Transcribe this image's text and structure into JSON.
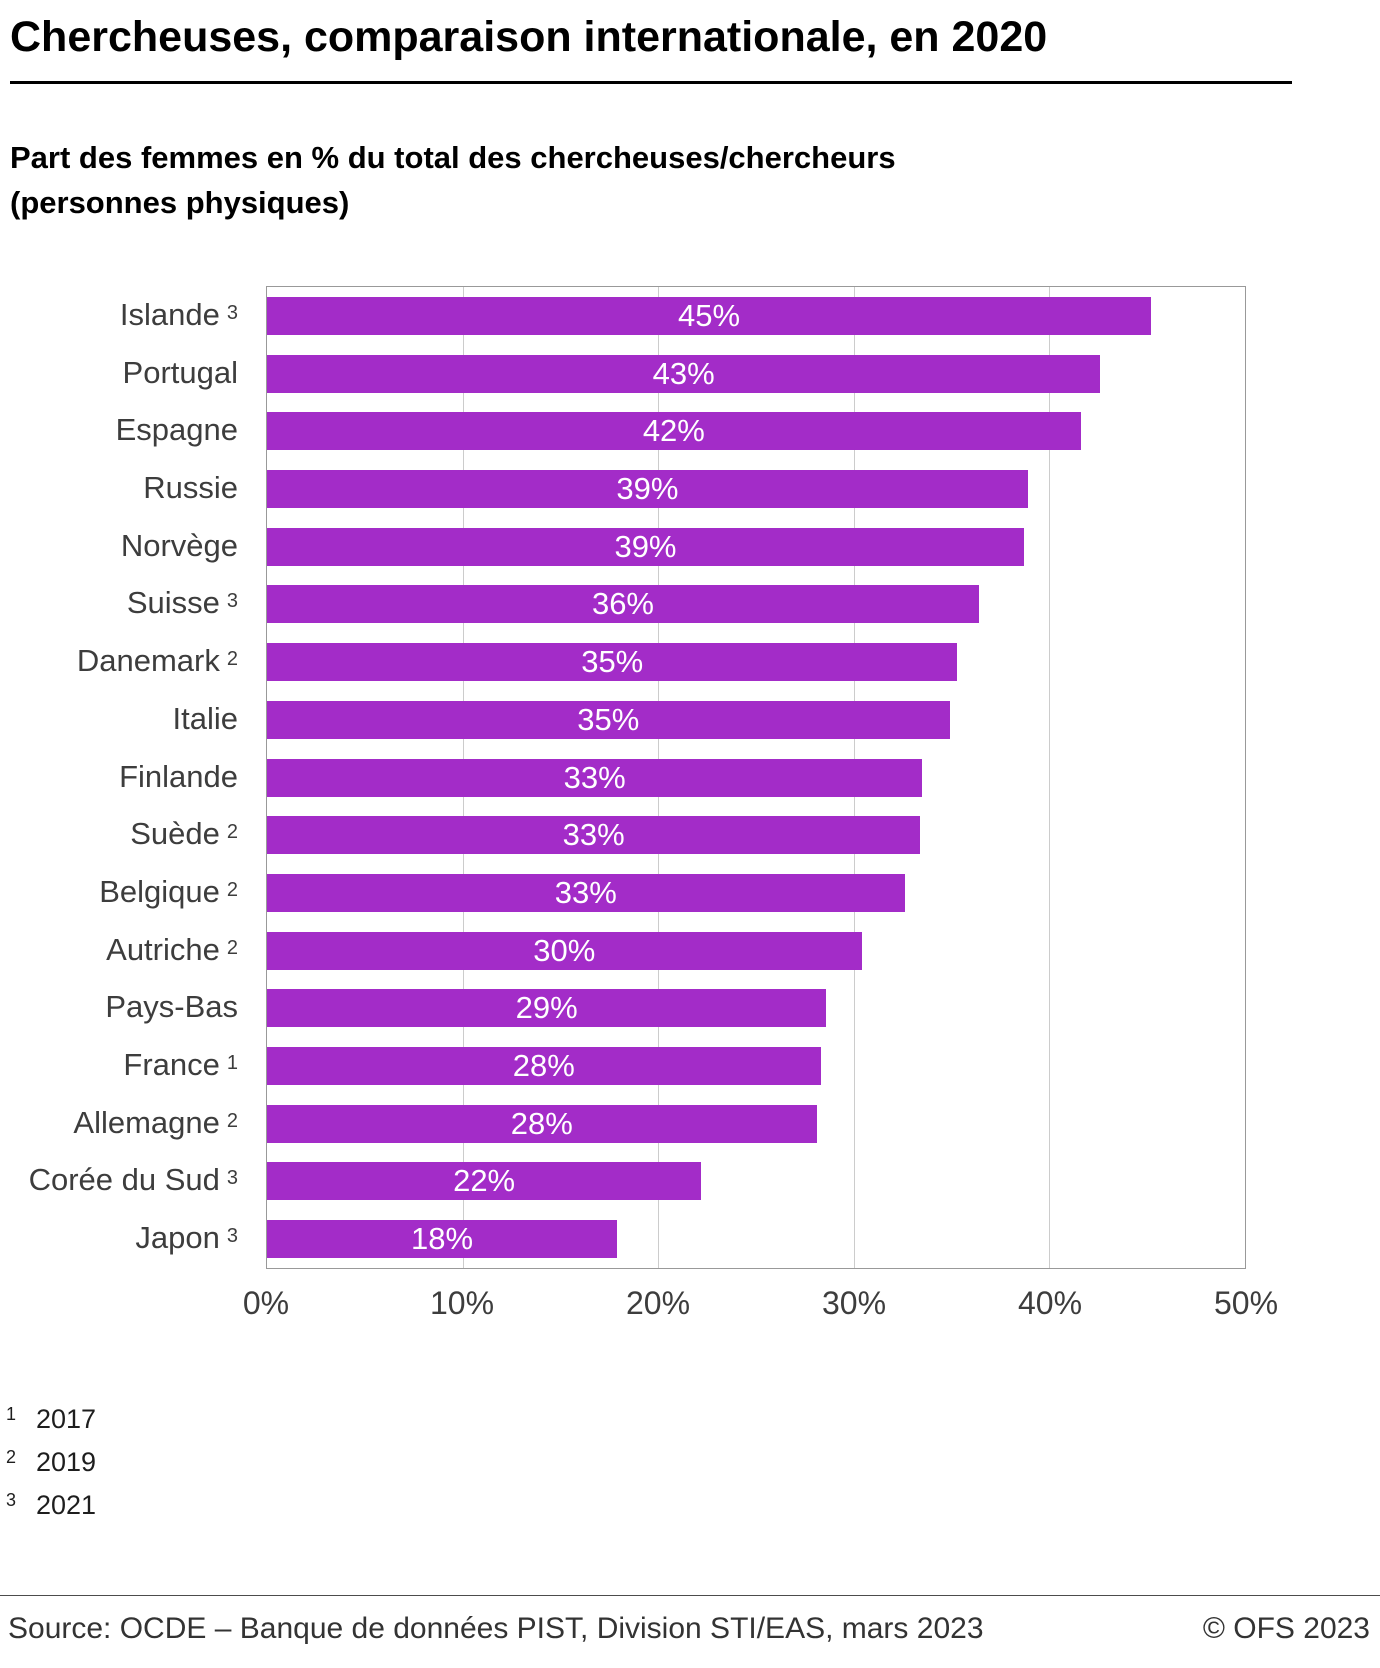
{
  "page": {
    "title": "Chercheuses, comparaison internationale, en 2020",
    "subtitle_line1": "Part des femmes en % du total des chercheuses/chercheurs",
    "subtitle_line2": "(personnes physiques)"
  },
  "chart_data": {
    "type": "bar",
    "orientation": "horizontal",
    "title": "Chercheuses, comparaison internationale, en 2020",
    "subtitle": "Part des femmes en % du total des chercheuses/chercheurs (personnes physiques)",
    "xlim": [
      0,
      50
    ],
    "x_ticks": [
      "0%",
      "10%",
      "20%",
      "30%",
      "40%",
      "50%"
    ],
    "grid": "vertical",
    "legend": "none",
    "bar_color": "#a32cc8",
    "categories": [
      "Islande",
      "Portugal",
      "Espagne",
      "Russie",
      "Norvège",
      "Suisse",
      "Danemark",
      "Italie",
      "Finlande",
      "Suède",
      "Belgique",
      "Autriche",
      "Pays-Bas",
      "France",
      "Allemagne",
      "Corée du Sud",
      "Japon"
    ],
    "footnote_refs": [
      "3",
      "",
      "",
      "",
      "",
      "3",
      "2",
      "",
      "",
      "2",
      "2",
      "2",
      "",
      "1",
      "2",
      "3",
      "3"
    ],
    "values": [
      45.2,
      42.6,
      41.6,
      38.9,
      38.7,
      36.4,
      35.3,
      34.9,
      33.5,
      33.4,
      32.6,
      30.4,
      28.6,
      28.3,
      28.1,
      22.2,
      17.9
    ],
    "value_labels": [
      "45%",
      "43%",
      "42%",
      "39%",
      "39%",
      "36%",
      "35%",
      "35%",
      "33%",
      "33%",
      "33%",
      "30%",
      "29%",
      "28%",
      "28%",
      "22%",
      "18%"
    ]
  },
  "footnotes": [
    {
      "marker": "1",
      "text": "2017"
    },
    {
      "marker": "2",
      "text": "2019"
    },
    {
      "marker": "3",
      "text": "2021"
    }
  ],
  "footer": {
    "source": "Source: OCDE – Banque de données PIST, Division STI/EAS, mars 2023",
    "copyright": "© OFS 2023"
  }
}
